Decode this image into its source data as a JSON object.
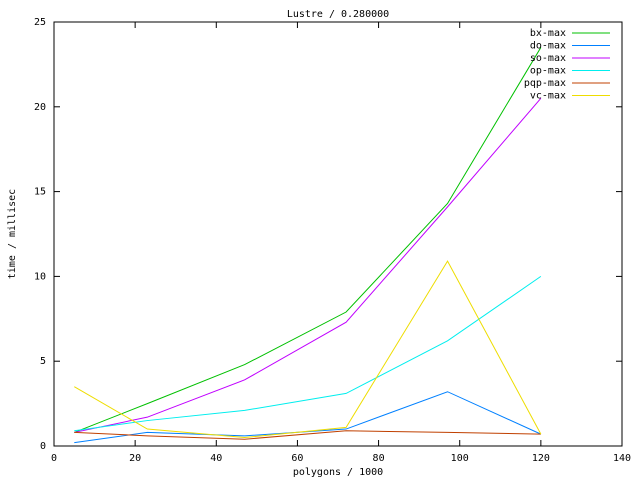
{
  "chart_data": {
    "type": "line",
    "title": "Lustre / 0.280000",
    "x_label": "polygons / 1000",
    "y_label": "time / millisec",
    "x": [
      5,
      23,
      47,
      72,
      97,
      120
    ],
    "series": [
      {
        "name": "bx-max",
        "color": "#00c000",
        "values": [
          0.8,
          2.5,
          4.8,
          7.9,
          14.3,
          23.5
        ]
      },
      {
        "name": "do-max",
        "color": "#0080ff",
        "values": [
          0.2,
          0.8,
          0.6,
          1.0,
          3.2,
          0.7
        ]
      },
      {
        "name": "so-max",
        "color": "#c000ff",
        "values": [
          0.8,
          1.7,
          3.9,
          7.3,
          14.1,
          20.5
        ]
      },
      {
        "name": "op-max",
        "color": "#00eeee",
        "values": [
          0.9,
          1.5,
          2.1,
          3.1,
          6.2,
          10.0
        ]
      },
      {
        "name": "pqp-max",
        "color": "#c04000",
        "values": [
          0.8,
          0.6,
          0.4,
          0.9,
          0.8,
          0.7
        ]
      },
      {
        "name": "vc-max",
        "color": "#eedd00",
        "values": [
          3.5,
          1.0,
          0.5,
          1.1,
          10.9,
          0.7
        ]
      }
    ],
    "xlim": [
      0,
      140
    ],
    "xticks": [
      0,
      20,
      40,
      60,
      80,
      100,
      120,
      140
    ],
    "ylim": [
      0,
      25
    ],
    "yticks": [
      0,
      5,
      10,
      15,
      20,
      25
    ],
    "grid": false,
    "legend": "top-right"
  }
}
